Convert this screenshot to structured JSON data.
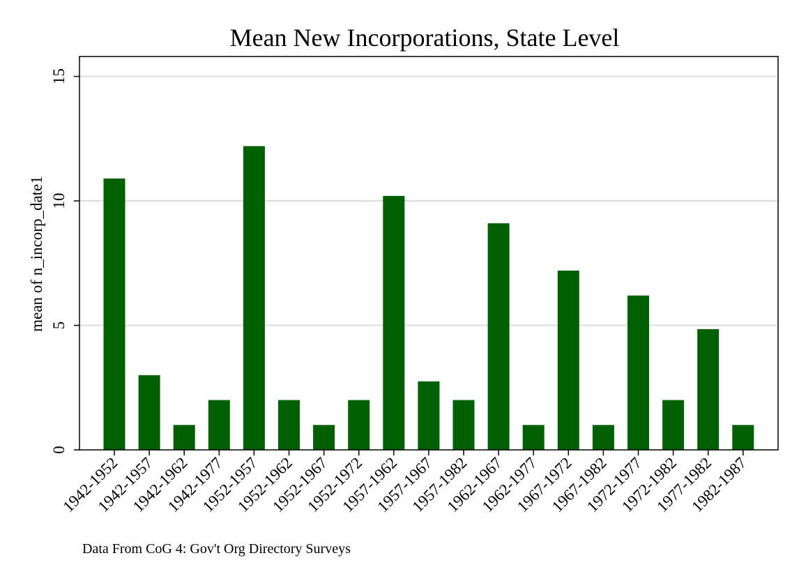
{
  "chart_data": {
    "type": "bar",
    "title": "Mean New Incorporations, State Level",
    "ylabel": "mean of n_incorp_date1",
    "xlabel": "",
    "note": "Data From CoG 4: Gov't Org Directory Surveys",
    "categories": [
      "1942-1952",
      "1942-1957",
      "1942-1962",
      "1942-1977",
      "1952-1957",
      "1952-1962",
      "1952-1967",
      "1952-1972",
      "1957-1962",
      "1957-1967",
      "1957-1982",
      "1962-1967",
      "1962-1977",
      "1967-1972",
      "1967-1982",
      "1972-1977",
      "1972-1982",
      "1977-1982",
      "1982-1987"
    ],
    "values": [
      10.9,
      3.0,
      1.0,
      2.0,
      12.2,
      2.0,
      1.0,
      2.0,
      10.2,
      2.75,
      2.0,
      9.1,
      1.0,
      7.2,
      1.0,
      6.2,
      2.0,
      4.85,
      1.0
    ],
    "ylim": [
      0,
      15.8
    ],
    "yticks": [
      0,
      5,
      10,
      15
    ],
    "grid": true,
    "bar_color": "#005f00",
    "grid_color": "#dcdcdc",
    "legend": "none"
  }
}
